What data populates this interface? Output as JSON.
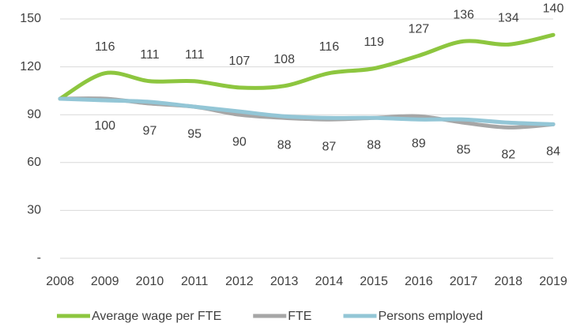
{
  "chart_data": {
    "type": "line",
    "categories": [
      "2008",
      "2009",
      "2010",
      "2011",
      "2012",
      "2013",
      "2014",
      "2015",
      "2016",
      "2017",
      "2018",
      "2019"
    ],
    "series": [
      {
        "name": "Average wage per FTE",
        "color": "#8dc63f",
        "values": [
          100,
          116,
          111,
          111,
          107,
          108,
          116,
          119,
          127,
          136,
          134,
          140
        ],
        "value_labels": [
          null,
          "116",
          "111",
          "111",
          "107",
          "108",
          "116",
          "119",
          "127",
          "136",
          "134",
          "140"
        ],
        "label_position": "above"
      },
      {
        "name": "FTE",
        "color": "#a6a6a6",
        "values": [
          100,
          100,
          97,
          95,
          90,
          88,
          87,
          88,
          89,
          85,
          82,
          84
        ],
        "value_labels": [
          null,
          "100",
          "97",
          "95",
          "90",
          "88",
          "87",
          "88",
          "89",
          "85",
          "82",
          "84"
        ],
        "label_position": "below"
      },
      {
        "name": "Persons employed",
        "color": "#93c6d6",
        "values": [
          100,
          99,
          98,
          95,
          92,
          89,
          88,
          88,
          87,
          87,
          85,
          84
        ]
      }
    ],
    "ylim": [
      0,
      150
    ],
    "yticks": [
      {
        "value": 0,
        "label": "-"
      },
      30,
      60,
      90,
      120,
      150
    ],
    "grid": true,
    "legend": "bottom"
  }
}
